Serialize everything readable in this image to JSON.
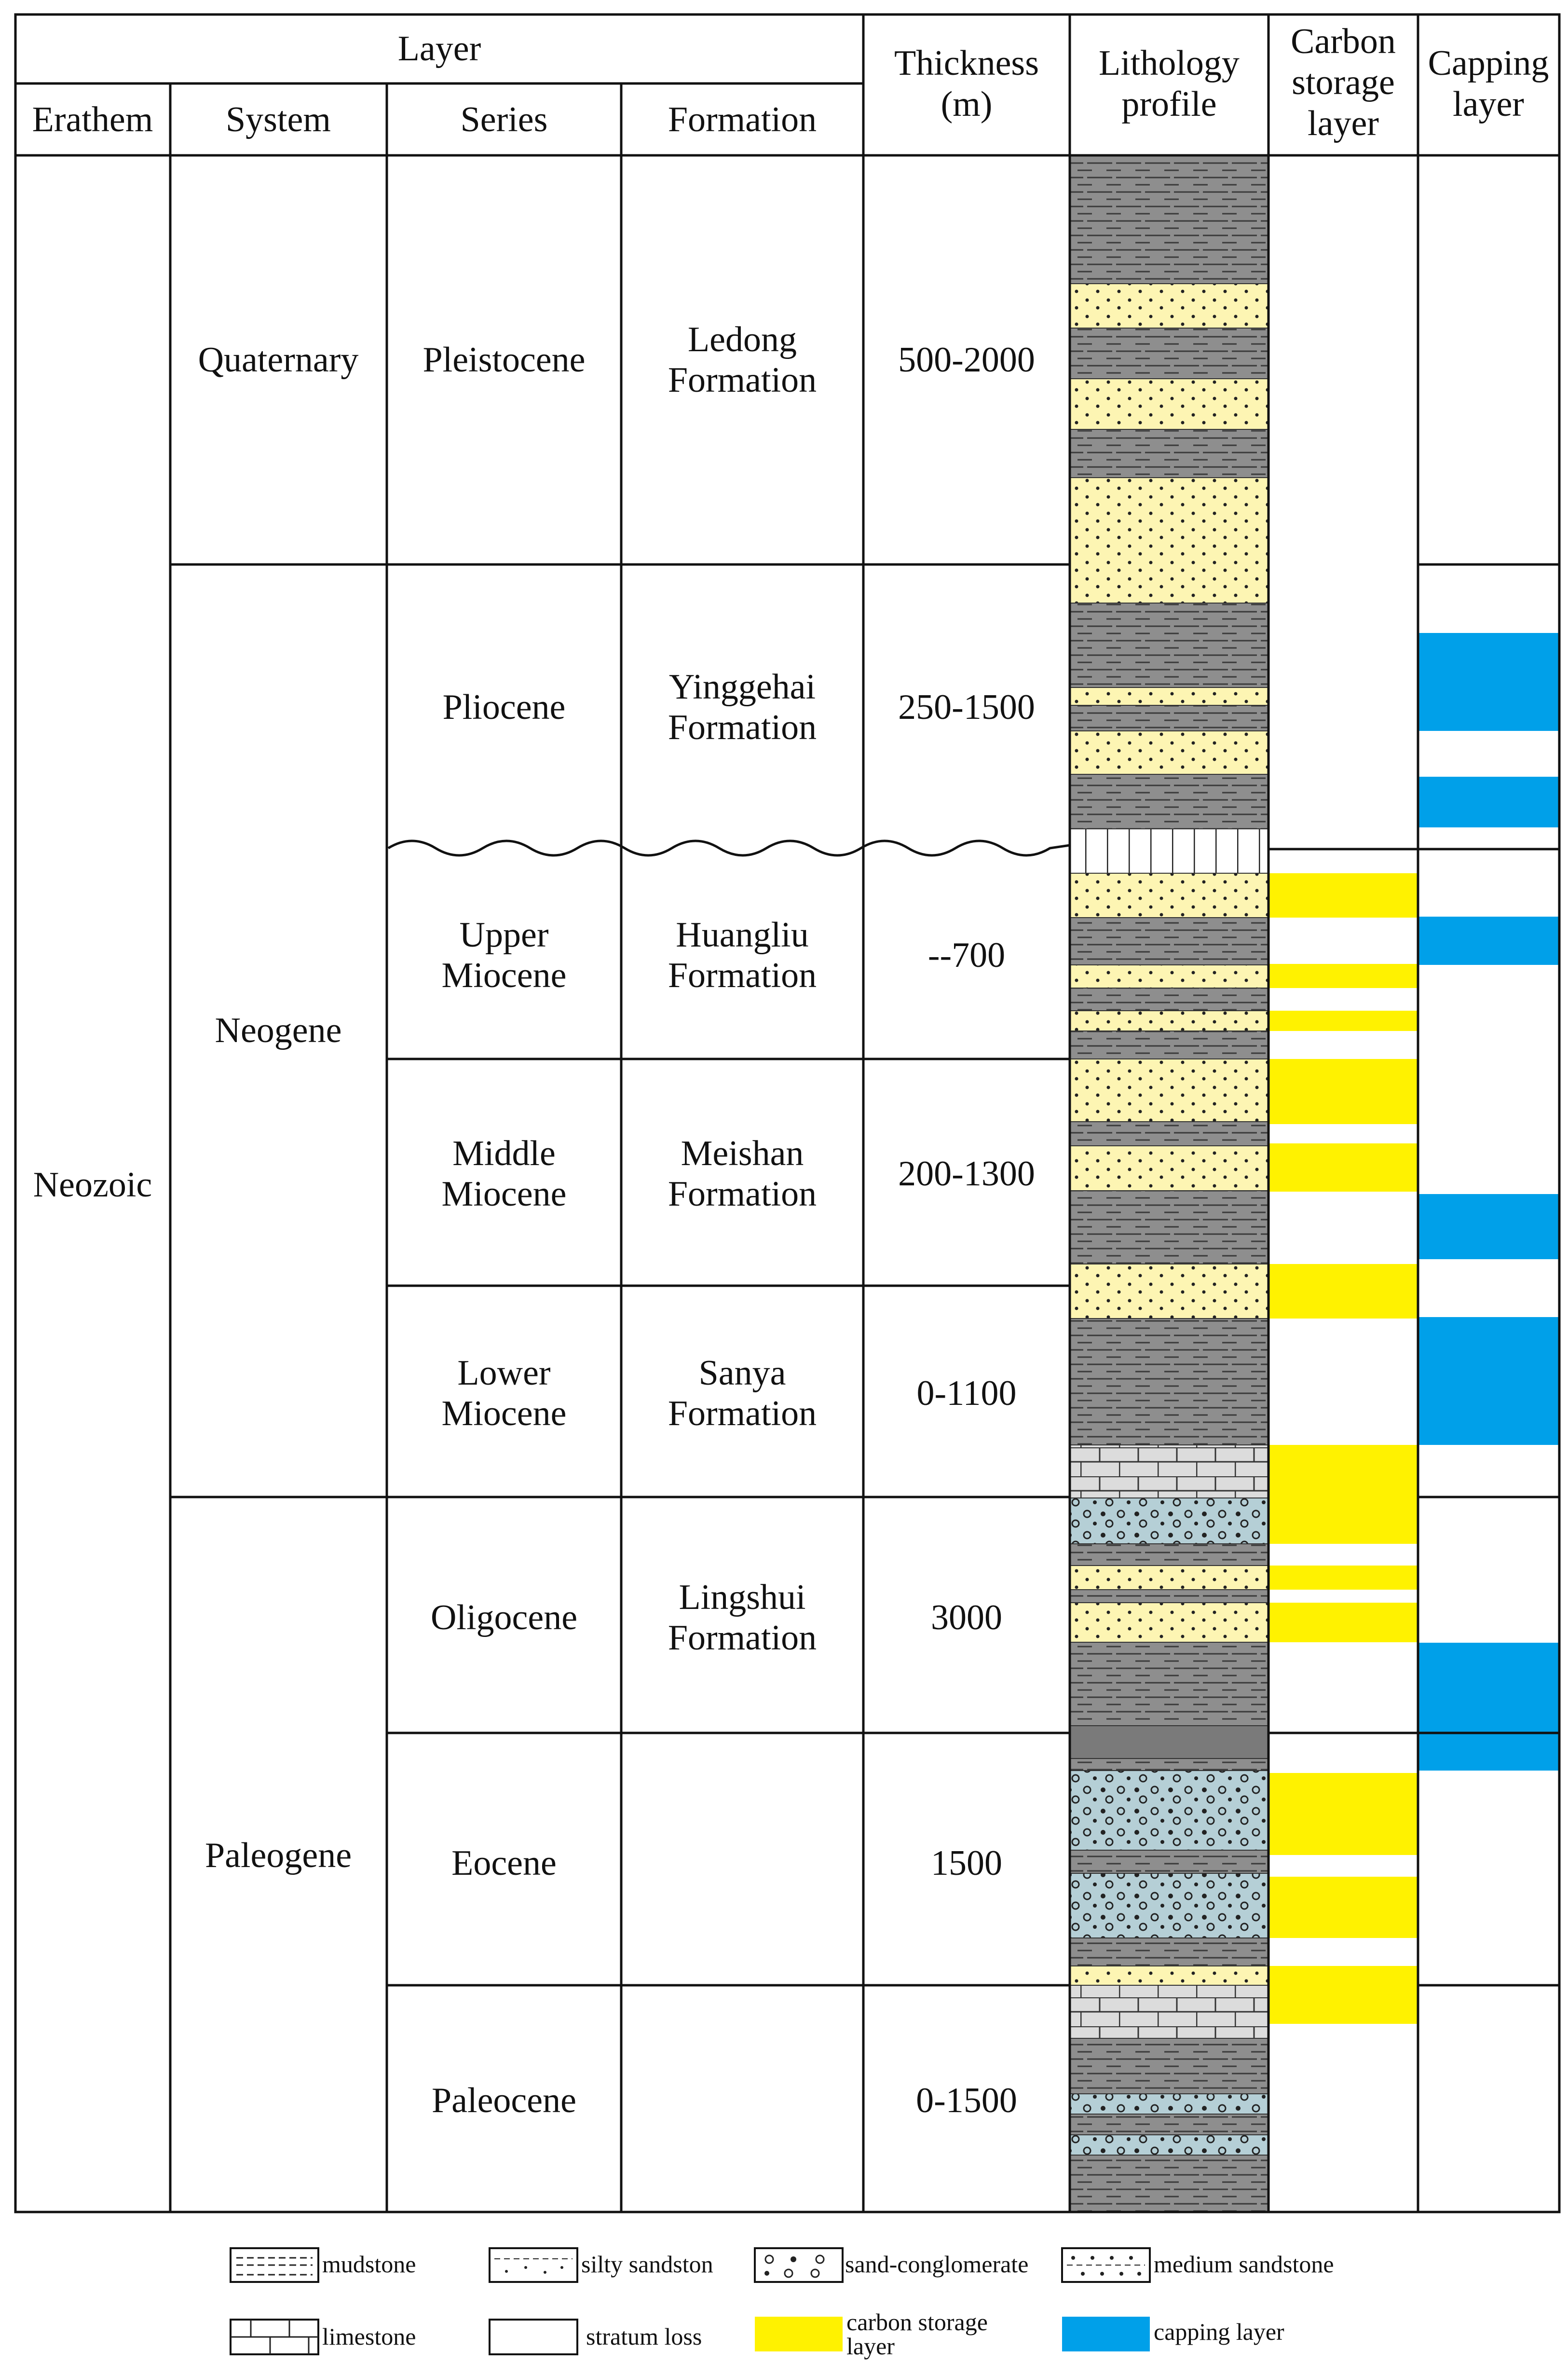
{
  "headers": {
    "layer": "Layer",
    "erathem": "Erathem",
    "system": "System",
    "series": "Series",
    "formation": "Formation",
    "thickness": [
      "Thickness",
      "(m)"
    ],
    "lithology": [
      "Lithology",
      "profile"
    ],
    "carbon": [
      "Carbon",
      "storage",
      "layer"
    ],
    "capping": [
      "Capping",
      "layer"
    ]
  },
  "erathem": "Neozoic",
  "systems": [
    "Quaternary",
    "Neogene",
    "Paleogene"
  ],
  "rows": [
    {
      "series": [
        "Pleistocene"
      ],
      "formation": [
        "Ledong",
        "Formation"
      ],
      "thickness": "500-2000"
    },
    {
      "series": [
        "Pliocene"
      ],
      "formation": [
        "Yinggehai",
        "Formation"
      ],
      "thickness": "250-1500"
    },
    {
      "series": [
        "Upper",
        "Miocene"
      ],
      "formation": [
        "Huangliu",
        "Formation"
      ],
      "thickness": "--700"
    },
    {
      "series": [
        "Middle",
        "Miocene"
      ],
      "formation": [
        "Meishan",
        "Formation"
      ],
      "thickness": "200-1300"
    },
    {
      "series": [
        "Lower",
        "Miocene"
      ],
      "formation": [
        "Sanya",
        "Formation"
      ],
      "thickness": "0-1100"
    },
    {
      "series": [
        "Oligocene"
      ],
      "formation": [
        "Lingshui",
        "Formation"
      ],
      "thickness": "3000"
    },
    {
      "series": [
        "Eocene"
      ],
      "formation": [],
      "thickness": "1500"
    },
    {
      "series": [
        "Paleocene"
      ],
      "formation": [],
      "thickness": "0-1500"
    }
  ],
  "legend": {
    "mudstone": "mudstone",
    "silty": "silty sandston",
    "conglomerate": "sand-conglomerate",
    "medium": "medium sandstone",
    "limestone": "limestone",
    "loss": "stratum loss",
    "carbon": [
      "carbon storage",
      "layer"
    ],
    "capping": "capping layer"
  },
  "colors": {
    "mudstone": "#8e8e8e",
    "sandstone": "#fdf5b3",
    "conglomerate": "#b5cfd6",
    "limestone": "#dcdcdc",
    "carbon_storage": "#fff200",
    "capping": "#00a0e9"
  }
}
